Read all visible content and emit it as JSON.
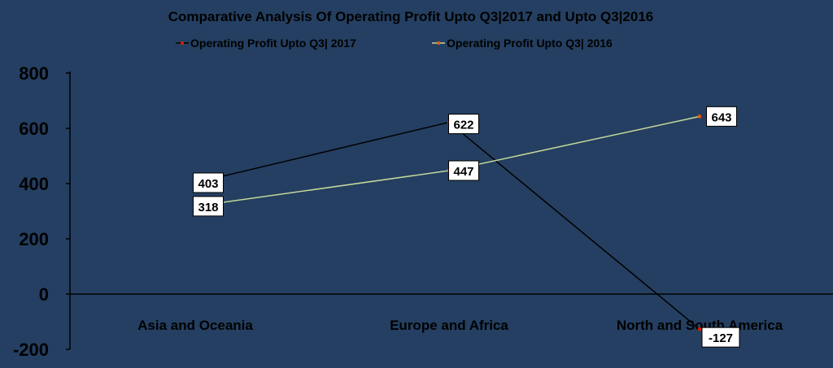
{
  "chart_data": {
    "type": "line",
    "title": "Comparative Analysis Of Operating Profit Upto Q3|2017 and Upto Q3|2016",
    "categories": [
      "Asia and Oceania",
      "Europe and Africa",
      "North and South America"
    ],
    "series": [
      {
        "name": "Operating Profit Upto Q3| 2017",
        "values": [
          403,
          622,
          -127
        ],
        "color": "#000000",
        "marker_color": "#cc2200"
      },
      {
        "name": "Operating Profit Upto Q3| 2016",
        "values": [
          318,
          447,
          643
        ],
        "color": "#c4d79b",
        "marker_color": "#e05a10"
      }
    ],
    "yticks": [
      "800",
      "600",
      "400",
      "200",
      "0",
      "-200"
    ],
    "ylim": [
      -200,
      800
    ],
    "grid": false,
    "legend_position": "top",
    "background_color": "#243f61"
  }
}
